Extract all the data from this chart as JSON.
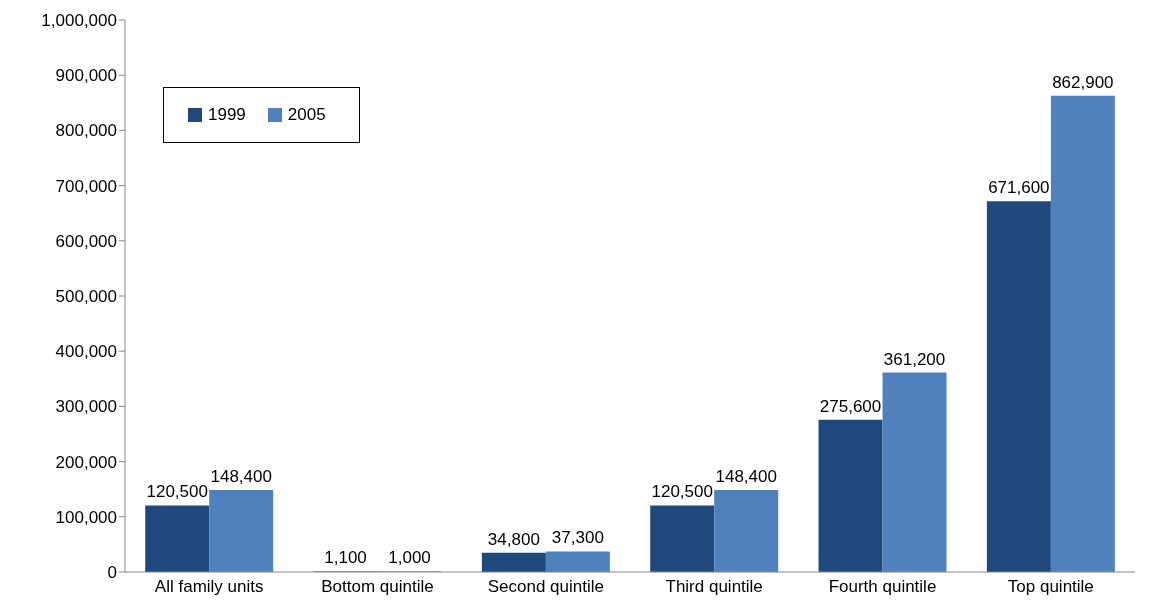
{
  "chart_data": {
    "type": "bar",
    "categories": [
      "All family units",
      "Bottom quintile",
      "Second quintile",
      "Third quintile",
      "Fourth quintile",
      "Top quintile"
    ],
    "series": [
      {
        "name": "1999",
        "color": "#1f497d",
        "values": [
          120500,
          1100,
          34800,
          120500,
          275600,
          671600
        ],
        "value_labels": [
          "120,500",
          "1,100",
          "34,800",
          "120,500",
          "275,600",
          "671,600"
        ]
      },
      {
        "name": "2005",
        "color": "#4f81bd",
        "values": [
          148400,
          1000,
          37300,
          148400,
          361200,
          862900
        ],
        "value_labels": [
          "148,400",
          "1,000",
          "37,300",
          "148,400",
          "361,200",
          "862,900"
        ]
      }
    ],
    "ylim": [
      0,
      1000000
    ],
    "yticks": [
      {
        "value": 0,
        "label": "0"
      },
      {
        "value": 100000,
        "label": "100,000"
      },
      {
        "value": 200000,
        "label": "200,000"
      },
      {
        "value": 300000,
        "label": "300,000"
      },
      {
        "value": 400000,
        "label": "400,000"
      },
      {
        "value": 500000,
        "label": "500,000"
      },
      {
        "value": 600000,
        "label": "600,000"
      },
      {
        "value": 700000,
        "label": "700,000"
      },
      {
        "value": 800000,
        "label": "800,000"
      },
      {
        "value": 900000,
        "label": "900,000"
      },
      {
        "value": 1000000,
        "label": "1,000,000"
      }
    ],
    "grid": false,
    "legend": "top left"
  }
}
